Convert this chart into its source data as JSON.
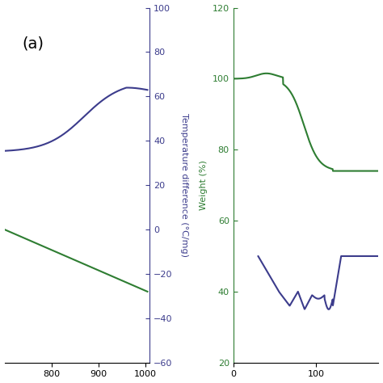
{
  "panel_a": {
    "label": "(a)",
    "xmin": 700,
    "xmax": 1010,
    "xticks": [
      800,
      900,
      1000
    ],
    "dta_color": "#3c3c8c",
    "tg_color": "#2e7d32",
    "dta_ylim": [
      -60,
      100
    ],
    "dta_yticks": [
      -60,
      -40,
      -20,
      0,
      20,
      40,
      60,
      80,
      100
    ],
    "ylabel_dta": "Temperature difference (°C/mg)"
  },
  "panel_b": {
    "xmin": 0,
    "xmax": 175,
    "xticks": [
      0,
      100
    ],
    "tg_color": "#2e7d32",
    "dta_color": "#3c3c8c",
    "weight_ylim": [
      20,
      120
    ],
    "weight_yticks": [
      20,
      40,
      60,
      80,
      100,
      120
    ],
    "ylabel_weight": "Weight (%)"
  },
  "background_color": "#ffffff"
}
